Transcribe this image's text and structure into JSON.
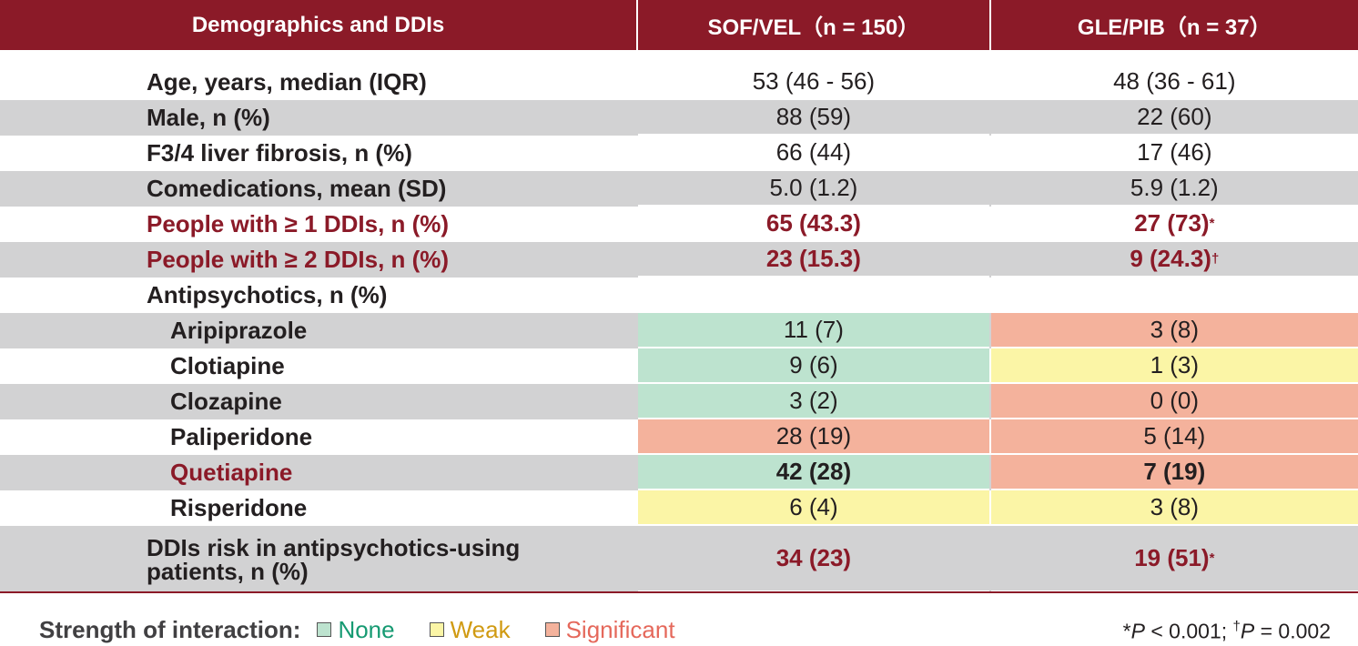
{
  "header": {
    "col0": "Demographics and DDIs",
    "col1": "SOF/VEL（n = 150）",
    "col2": "GLE/PIB（n = 37）"
  },
  "rows": [
    {
      "label": "Age, years, median (IQR)",
      "sof": "53 (46 - 56)",
      "gle": "48 (36 - 61)"
    },
    {
      "label": "Male, n (%)",
      "sof": "88 (59)",
      "gle": "22 (60)"
    },
    {
      "label": "F3/4 liver fibrosis, n (%)",
      "sof": "66 (44)",
      "gle": "17 (46)"
    },
    {
      "label": "Comedications, mean (SD)",
      "sof": "5.0 (1.2)",
      "gle": "5.9 (1.2)"
    },
    {
      "label": "People with ≥ 1 DDIs, n (%)",
      "sof": "65 (43.3)",
      "gle": "27 (73)",
      "gle_mark": "*"
    },
    {
      "label": "People with ≥ 2 DDIs, n (%)",
      "sof": "23 (15.3)",
      "gle": "9 (24.3)",
      "gle_mark": "†"
    },
    {
      "label": "Antipsychotics, n (%)",
      "sof": "",
      "gle": ""
    },
    {
      "label": "Aripiprazole",
      "sof": "11 (7)",
      "gle": "3 (8)",
      "sof_strength": "None",
      "gle_strength": "Significant"
    },
    {
      "label": "Clotiapine",
      "sof": "9 (6)",
      "gle": "1 (3)",
      "sof_strength": "None",
      "gle_strength": "Weak"
    },
    {
      "label": "Clozapine",
      "sof": "3 (2)",
      "gle": "0 (0)",
      "sof_strength": "None",
      "gle_strength": "Significant"
    },
    {
      "label": "Paliperidone",
      "sof": "28 (19)",
      "gle": "5 (14)",
      "sof_strength": "Significant",
      "gle_strength": "Significant"
    },
    {
      "label": "Quetiapine",
      "sof": "42 (28)",
      "gle": "7 (19)",
      "sof_strength": "None",
      "gle_strength": "Significant"
    },
    {
      "label": "Risperidone",
      "sof": "6 (4)",
      "gle": "3 (8)",
      "sof_strength": "Weak",
      "gle_strength": "Weak"
    },
    {
      "label_line1": "DDIs risk in antipsychotics-using",
      "label_line2": "patients, n (%)",
      "sof": "34 (23)",
      "gle": "19 (51)",
      "gle_mark": "*"
    }
  ],
  "legend": {
    "title": "Strength of interaction:",
    "none": "None",
    "weak": "Weak",
    "significant": "Significant"
  },
  "footnote": {
    "p1_prefix": "*",
    "p1_var": "P",
    "p1_value": " < 0.001; ",
    "p2_prefix": "†",
    "p2_var": "P",
    "p2_value": " = 0.002"
  },
  "colors": {
    "brand": "#8b1a28",
    "row_grey": "#d2d2d3",
    "none": "#bde3cf",
    "weak": "#fbf5a6",
    "significant": "#f4b29c"
  }
}
